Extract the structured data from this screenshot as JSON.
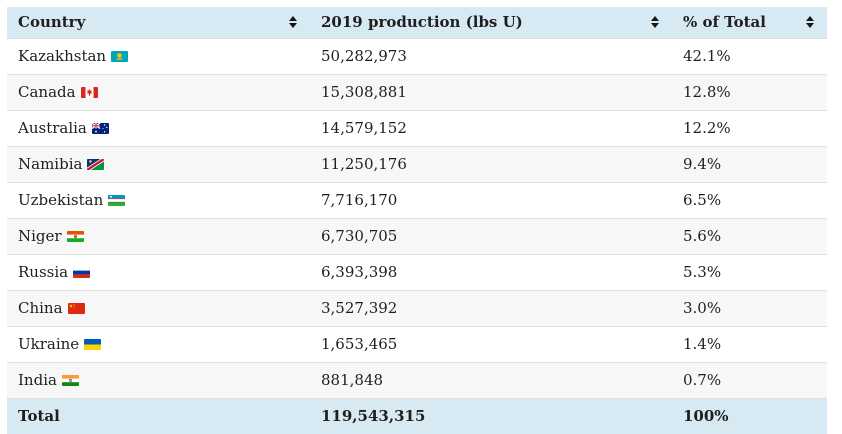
{
  "table": {
    "headers": [
      {
        "label": "Country",
        "sort_icon": "sort-icon"
      },
      {
        "label": "2019 production (lbs U)",
        "sort_icon": "sort-icon"
      },
      {
        "label": "% of Total",
        "sort_icon": "sort-icon"
      }
    ],
    "rows": [
      {
        "country": "Kazakhstan",
        "flag": "kazakhstan-flag",
        "production": "50,282,973",
        "percent": "42.1%"
      },
      {
        "country": "Canada",
        "flag": "canada-flag",
        "production": "15,308,881",
        "percent": "12.8%"
      },
      {
        "country": "Australia",
        "flag": "australia-flag",
        "production": "14,579,152",
        "percent": "12.2%"
      },
      {
        "country": "Namibia",
        "flag": "namibia-flag",
        "production": "11,250,176",
        "percent": "9.4%"
      },
      {
        "country": "Uzbekistan",
        "flag": "uzbekistan-flag",
        "production": "7,716,170",
        "percent": "6.5%"
      },
      {
        "country": "Niger",
        "flag": "niger-flag",
        "production": "6,730,705",
        "percent": "5.6%"
      },
      {
        "country": "Russia",
        "flag": "russia-flag",
        "production": "6,393,398",
        "percent": "5.3%"
      },
      {
        "country": "China",
        "flag": "china-flag",
        "production": "3,527,392",
        "percent": "3.0%"
      },
      {
        "country": "Ukraine",
        "flag": "ukraine-flag",
        "production": "1,653,465",
        "percent": "1.4%"
      },
      {
        "country": "India",
        "flag": "india-flag",
        "production": "881,848",
        "percent": "0.7%"
      }
    ],
    "total": {
      "label": "Total",
      "production": "119,543,315",
      "percent": "100%"
    }
  },
  "colors": {
    "header_bg": "#d7e9f2",
    "stripe_bg": "#f7f7f7",
    "border": "#e0e0e0",
    "text": "#1f1f1f"
  }
}
